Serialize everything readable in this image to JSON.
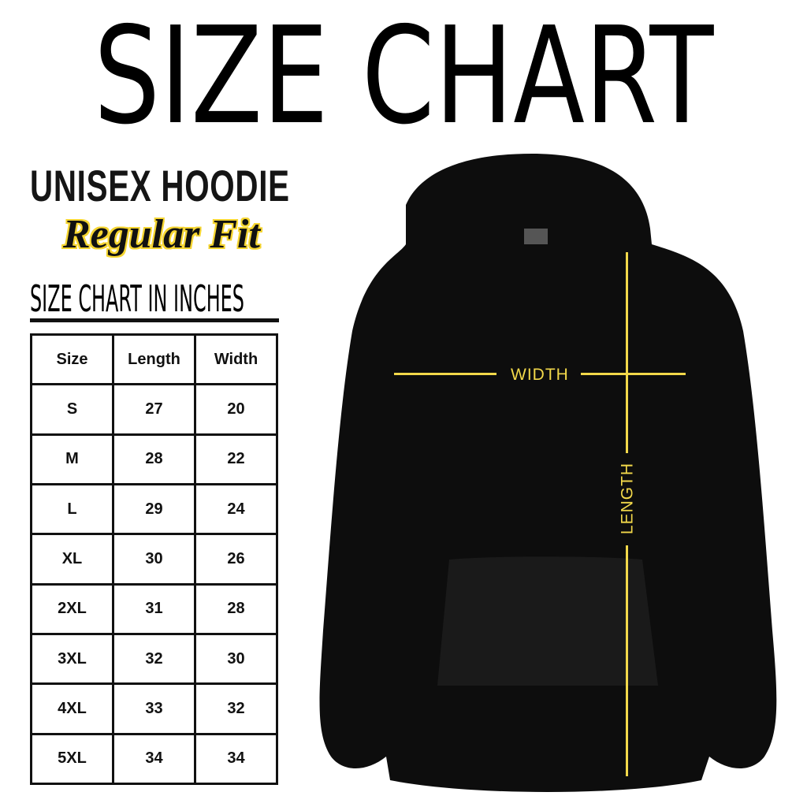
{
  "title": "SIZE CHART",
  "product": "UNISEX HOODIE",
  "fit": "Regular Fit",
  "unit_label": "SIZE CHART IN INCHES",
  "table": {
    "headers": [
      "Size",
      "Length",
      "Width"
    ],
    "rows": [
      [
        "S",
        "27",
        "20"
      ],
      [
        "M",
        "28",
        "22"
      ],
      [
        "L",
        "29",
        "24"
      ],
      [
        "XL",
        "30",
        "26"
      ],
      [
        "2XL",
        "31",
        "28"
      ],
      [
        "3XL",
        "32",
        "30"
      ],
      [
        "4XL",
        "33",
        "32"
      ],
      [
        "5XL",
        "34",
        "34"
      ]
    ]
  },
  "diagram": {
    "width_label": "WIDTH",
    "length_label": "LENGTH",
    "line_color": "#f2d84a",
    "garment_color": "#0d0d0d"
  }
}
